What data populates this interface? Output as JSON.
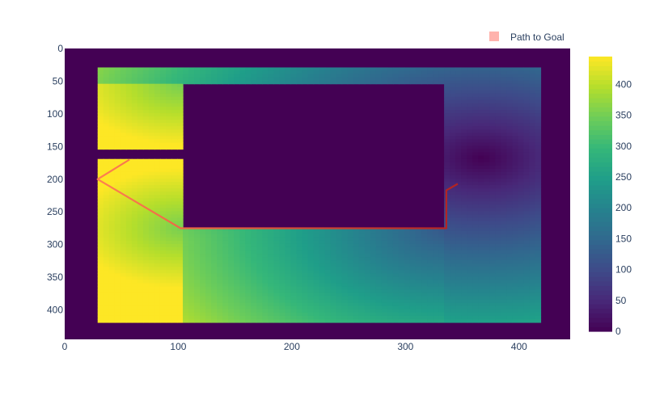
{
  "chart_data": {
    "type": "heatmap",
    "title": "",
    "xlabel": "",
    "ylabel": "",
    "xlim": [
      0,
      445
    ],
    "ylim": [
      445,
      0
    ],
    "y_reversed": true,
    "x_ticks": [
      0,
      100,
      200,
      300,
      400
    ],
    "y_ticks": [
      0,
      50,
      100,
      150,
      200,
      250,
      300,
      350,
      400
    ],
    "colorscale": "viridis",
    "zlim": [
      0,
      445
    ],
    "colorbar_ticks": [
      0,
      50,
      100,
      150,
      200,
      250,
      300,
      350,
      400
    ],
    "heatmap": {
      "free_region": {
        "x": [
          29,
          415
        ],
        "y": [
          29,
          416
        ]
      },
      "walls": [
        {
          "x": [
            102,
            336
          ],
          "y": [
            54,
            275
          ]
        },
        {
          "x": [
            29,
            102
          ],
          "y": [
            152,
            170
          ]
        },
        {
          "x": [
            147,
            336
          ],
          "y": [
            54,
            170
          ]
        },
        {
          "x": [
            156,
            336
          ],
          "y": [
            170,
            238
          ]
        }
      ],
      "goal": {
        "x": 367,
        "y": 168
      },
      "corner_points": [
        {
          "x": 29,
          "y": 200
        },
        {
          "x": 102,
          "y": 275
        },
        {
          "x": 336,
          "y": 275
        },
        {
          "x": 336,
          "y": 200
        }
      ],
      "zmax": 445
    },
    "series": [
      {
        "name": "Path to Goal",
        "type": "line",
        "color": "#ff7f50",
        "color_end": "#b22222",
        "x": [
          57,
          29,
          102,
          336,
          336,
          346
        ],
        "y": [
          170,
          200,
          275,
          275,
          217,
          207
        ]
      }
    ],
    "legend": {
      "placement": "top-right",
      "entries": [
        {
          "label": "Path to Goal",
          "color": "#ffb3ad"
        }
      ]
    }
  }
}
